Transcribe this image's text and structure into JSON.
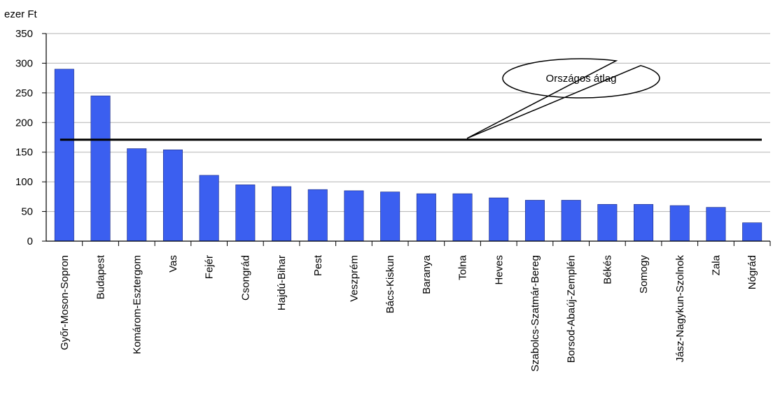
{
  "chart_data": {
    "type": "bar",
    "unit_label": "ezer Ft",
    "categories": [
      "Győr-Moson-Sopron",
      "Budapest",
      "Komárom-Esztergom",
      "Vas",
      "Fejér",
      "Csongrád",
      "Hajdú-Bihar",
      "Pest",
      "Veszprém",
      "Bács-Kiskun",
      "Baranya",
      "Tolna",
      "Heves",
      "Szabolcs-Szatmár-Bereg",
      "Borsod-Abaúj-Zemplén",
      "Békés",
      "Somogy",
      "Jász-Nagykun-Szolnok",
      "Zala",
      "Nógrád"
    ],
    "values": [
      290,
      245,
      156,
      154,
      111,
      95,
      92,
      87,
      85,
      83,
      80,
      80,
      73,
      69,
      69,
      62,
      62,
      60,
      57,
      31
    ],
    "yticks": [
      0,
      50,
      100,
      150,
      200,
      250,
      300,
      350
    ],
    "ylim": [
      0,
      350
    ],
    "average_value": 171,
    "average_label": "Országos átlag",
    "bar_color": "#3b5ff0",
    "grid": true,
    "legend": "none"
  }
}
